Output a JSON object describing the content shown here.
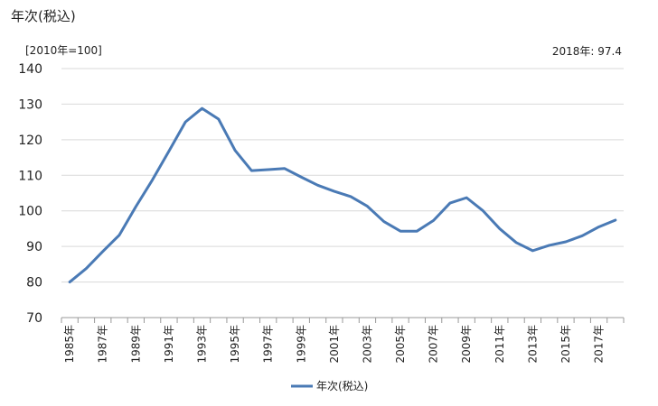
{
  "chart_data": {
    "type": "line",
    "title": "年次(税込)",
    "unit_label": "[2010年=100]",
    "latest_annotation": "2018年: 97.4",
    "ylim": [
      70,
      140
    ],
    "yticks": [
      70,
      80,
      90,
      100,
      110,
      120,
      130,
      140
    ],
    "grid": true,
    "legend_position": "bottom",
    "x": [
      1985,
      1986,
      1987,
      1988,
      1989,
      1990,
      1991,
      1992,
      1993,
      1994,
      1995,
      1996,
      1997,
      1998,
      1999,
      2000,
      2001,
      2002,
      2003,
      2004,
      2005,
      2006,
      2007,
      2008,
      2009,
      2010,
      2011,
      2012,
      2013,
      2014,
      2015,
      2016,
      2017,
      2018
    ],
    "xtick_labels": [
      "1985年",
      "1987年",
      "1989年",
      "1991年",
      "1993年",
      "1995年",
      "1997年",
      "1999年",
      "2001年",
      "2003年",
      "2005年",
      "2007年",
      "2009年",
      "2011年",
      "2013年",
      "2015年",
      "2017年"
    ],
    "series": [
      {
        "name": "年次(税込)",
        "color": "#4a7ab5",
        "values": [
          80.0,
          83.8,
          88.6,
          93.2,
          101.2,
          108.7,
          116.8,
          125.0,
          128.8,
          125.8,
          117.0,
          111.3,
          111.6,
          111.9,
          109.5,
          107.2,
          105.5,
          104.0,
          101.3,
          97.0,
          94.3,
          94.3,
          97.3,
          102.2,
          103.7,
          100.0,
          95.0,
          91.1,
          88.8,
          90.3,
          91.3,
          93.0,
          95.5,
          97.4
        ]
      }
    ]
  }
}
